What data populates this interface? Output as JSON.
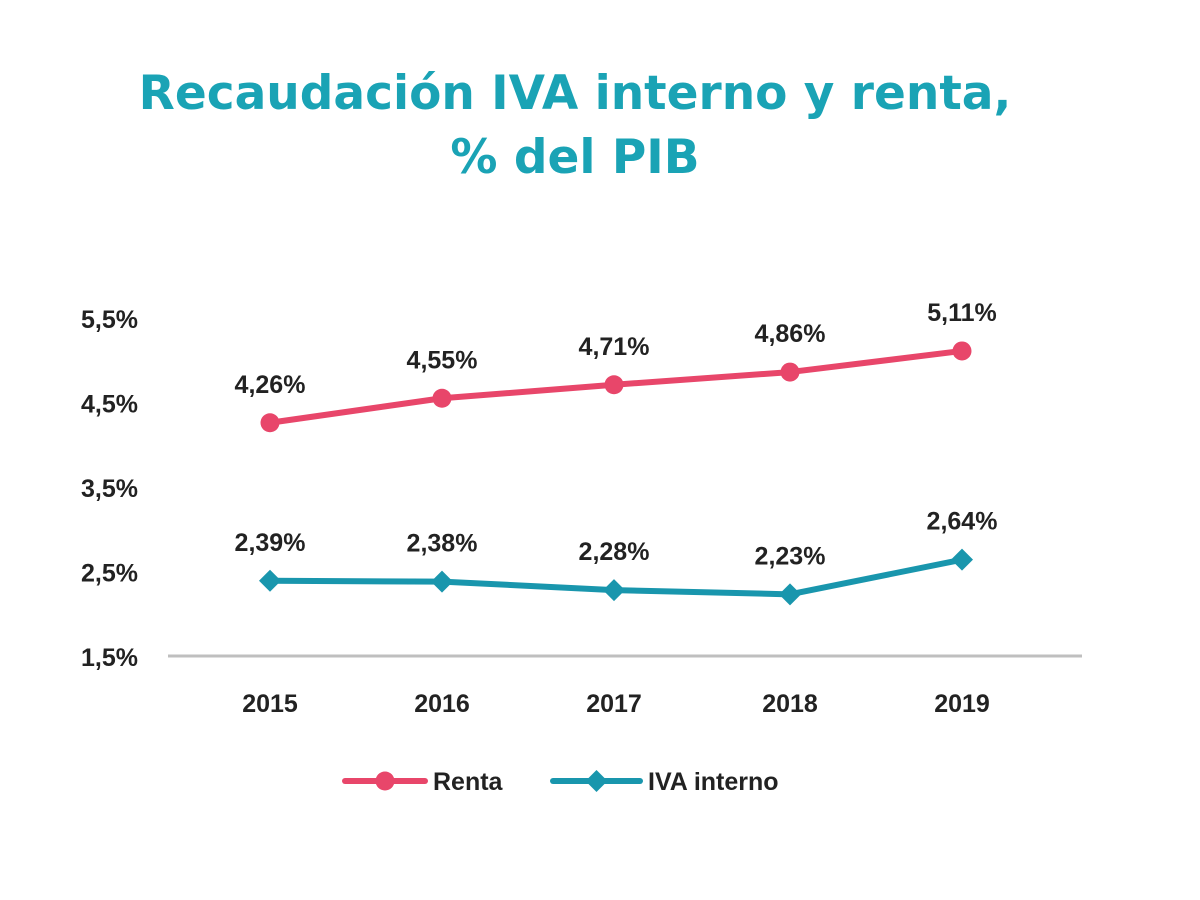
{
  "chart_data": {
    "type": "line",
    "title": {
      "line1": "Recaudación IVA interno y renta,",
      "line2": "% del PIB"
    },
    "categories": [
      "2015",
      "2016",
      "2017",
      "2018",
      "2019"
    ],
    "yticks": [
      {
        "value": 1.5,
        "label": "1,5%"
      },
      {
        "value": 2.5,
        "label": "2,5%"
      },
      {
        "value": 3.5,
        "label": "3,5%"
      },
      {
        "value": 4.5,
        "label": "4,5%"
      },
      {
        "value": 5.5,
        "label": "5,5%"
      }
    ],
    "ylim": [
      1.5,
      5.5
    ],
    "grid": false,
    "legend_position": "bottom",
    "series": [
      {
        "name": "Renta",
        "color": "#e8466a",
        "marker": "circle",
        "values": [
          4.26,
          4.55,
          4.71,
          4.86,
          5.11
        ],
        "labels": [
          "4,26%",
          "4,55%",
          "4,71%",
          "4,86%",
          "5,11%"
        ]
      },
      {
        "name": "IVA interno",
        "color": "#1996ad",
        "marker": "diamond",
        "values": [
          2.39,
          2.38,
          2.28,
          2.23,
          2.64
        ],
        "labels": [
          "2,39%",
          "2,38%",
          "2,28%",
          "2,23%",
          "2,64%"
        ]
      }
    ]
  }
}
